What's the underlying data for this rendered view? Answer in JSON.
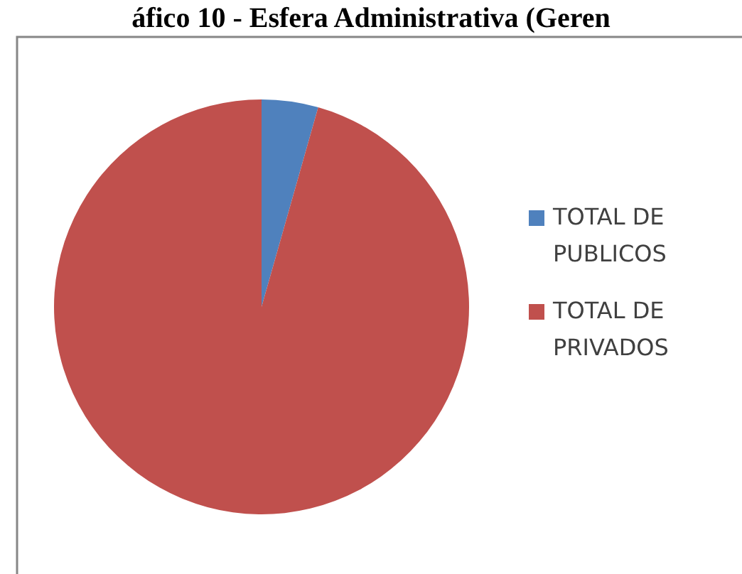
{
  "chart_data": {
    "type": "pie",
    "title": "áfico 10 - Esfera Administrativa (Geren",
    "categories": [
      "TOTAL DE PUBLICOS",
      "TOTAL DE PRIVADOS"
    ],
    "values": [
      4.4,
      95.6
    ],
    "colors": [
      "#4f81bd",
      "#c0504d"
    ],
    "legend": "right"
  }
}
